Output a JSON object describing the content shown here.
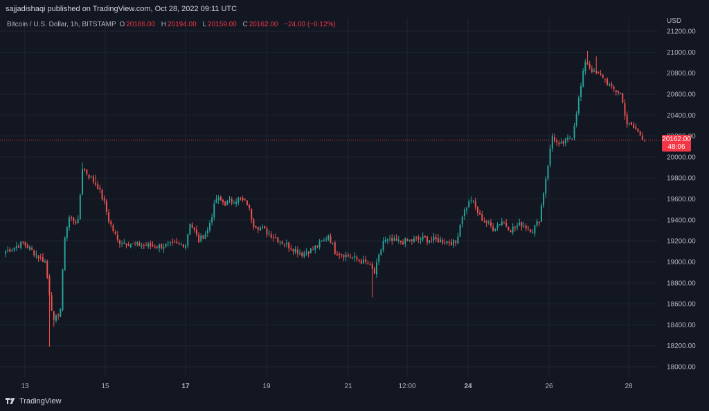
{
  "header": {
    "publisher_line": "sajjadishaqi published on TradingView.com, Oct 28, 2022 09:11 UTC"
  },
  "symbol": {
    "name": "Bitcoin / U.S. Dollar, 1h, BITSTAMP",
    "o_label": "O",
    "o_value": "20186.00",
    "h_label": "H",
    "h_value": "20194.00",
    "l_label": "L",
    "l_value": "20159.00",
    "c_label": "C",
    "c_value": "20162.00",
    "change": "−24.00 (−0.12%)"
  },
  "price_axis": {
    "currency": "USD"
  },
  "last_price": {
    "price": "20162.00",
    "countdown": "48:06"
  },
  "footer": {
    "brand": "TradingView"
  },
  "colors": {
    "background": "#131722",
    "grid": "#1f2433",
    "up": "#26a69a",
    "down": "#ef5350",
    "text": "#b2b5be"
  },
  "chart_data": {
    "type": "candlestick",
    "title": "Bitcoin / U.S. Dollar, 1h, BITSTAMP",
    "ylabel": "USD",
    "ylim": [
      17900,
      21260
    ],
    "y_ticks": [
      "21200.00",
      "21000.00",
      "20800.00",
      "20600.00",
      "20400.00",
      "20200.00",
      "20000.00",
      "19800.00",
      "19600.00",
      "19400.00",
      "19200.00",
      "19000.00",
      "18800.00",
      "18600.00",
      "18400.00",
      "18200.00",
      "18000.00"
    ],
    "x_ticks": [
      {
        "label": "13",
        "bold": false
      },
      {
        "label": "15",
        "bold": false
      },
      {
        "label": "17",
        "bold": true
      },
      {
        "label": "19",
        "bold": false
      },
      {
        "label": "21",
        "bold": false
      },
      {
        "label": "12:00",
        "bold": false
      },
      {
        "label": "24",
        "bold": true
      },
      {
        "label": "26",
        "bold": false
      },
      {
        "label": "28",
        "bold": false
      }
    ],
    "grid": true,
    "last_price_line": 20162,
    "anchors": [
      {
        "t": 0,
        "price": 19100
      },
      {
        "t": 8,
        "price": 19180
      },
      {
        "t": 15,
        "price": 19050
      },
      {
        "t": 18,
        "price": 19000
      },
      {
        "t": 20,
        "price": 18700
      },
      {
        "t": 22,
        "price": 18420
      },
      {
        "t": 25,
        "price": 18550
      },
      {
        "t": 27,
        "price": 19250
      },
      {
        "t": 29,
        "price": 19420
      },
      {
        "t": 33,
        "price": 19380
      },
      {
        "t": 35,
        "price": 19900
      },
      {
        "t": 38,
        "price": 19820
      },
      {
        "t": 42,
        "price": 19720
      },
      {
        "t": 45,
        "price": 19560
      },
      {
        "t": 47,
        "price": 19400
      },
      {
        "t": 51,
        "price": 19200
      },
      {
        "t": 60,
        "price": 19160
      },
      {
        "t": 70,
        "price": 19150
      },
      {
        "t": 82,
        "price": 19170
      },
      {
        "t": 84,
        "price": 19380
      },
      {
        "t": 88,
        "price": 19200
      },
      {
        "t": 92,
        "price": 19300
      },
      {
        "t": 96,
        "price": 19600
      },
      {
        "t": 100,
        "price": 19560
      },
      {
        "t": 106,
        "price": 19600
      },
      {
        "t": 110,
        "price": 19560
      },
      {
        "t": 113,
        "price": 19360
      },
      {
        "t": 118,
        "price": 19300
      },
      {
        "t": 125,
        "price": 19200
      },
      {
        "t": 135,
        "price": 19080
      },
      {
        "t": 140,
        "price": 19120
      },
      {
        "t": 145,
        "price": 19200
      },
      {
        "t": 147,
        "price": 19260
      },
      {
        "t": 150,
        "price": 19100
      },
      {
        "t": 158,
        "price": 19040
      },
      {
        "t": 165,
        "price": 18980
      },
      {
        "t": 168,
        "price": 18890
      },
      {
        "t": 172,
        "price": 19200
      },
      {
        "t": 180,
        "price": 19190
      },
      {
        "t": 190,
        "price": 19220
      },
      {
        "t": 200,
        "price": 19200
      },
      {
        "t": 205,
        "price": 19180
      },
      {
        "t": 208,
        "price": 19450
      },
      {
        "t": 212,
        "price": 19600
      },
      {
        "t": 216,
        "price": 19430
      },
      {
        "t": 222,
        "price": 19320
      },
      {
        "t": 226,
        "price": 19390
      },
      {
        "t": 230,
        "price": 19310
      },
      {
        "t": 235,
        "price": 19360
      },
      {
        "t": 240,
        "price": 19300
      },
      {
        "t": 243,
        "price": 19400
      },
      {
        "t": 246,
        "price": 19800
      },
      {
        "t": 249,
        "price": 20200
      },
      {
        "t": 252,
        "price": 20100
      },
      {
        "t": 255,
        "price": 20150
      },
      {
        "t": 258,
        "price": 20200
      },
      {
        "t": 261,
        "price": 20550
      },
      {
        "t": 264,
        "price": 20920
      },
      {
        "t": 268,
        "price": 20800
      },
      {
        "t": 272,
        "price": 20770
      },
      {
        "t": 276,
        "price": 20650
      },
      {
        "t": 280,
        "price": 20610
      },
      {
        "t": 283,
        "price": 20320
      },
      {
        "t": 287,
        "price": 20260
      },
      {
        "t": 291,
        "price": 20162
      }
    ],
    "wicks": [
      {
        "t": 20,
        "low": 18190
      },
      {
        "t": 22,
        "low": 18380
      },
      {
        "t": 35,
        "high": 19950
      },
      {
        "t": 167,
        "low": 18660
      },
      {
        "t": 265,
        "high": 21010
      },
      {
        "t": 269,
        "high": 20960
      },
      {
        "t": 41,
        "high": 19830
      }
    ]
  }
}
